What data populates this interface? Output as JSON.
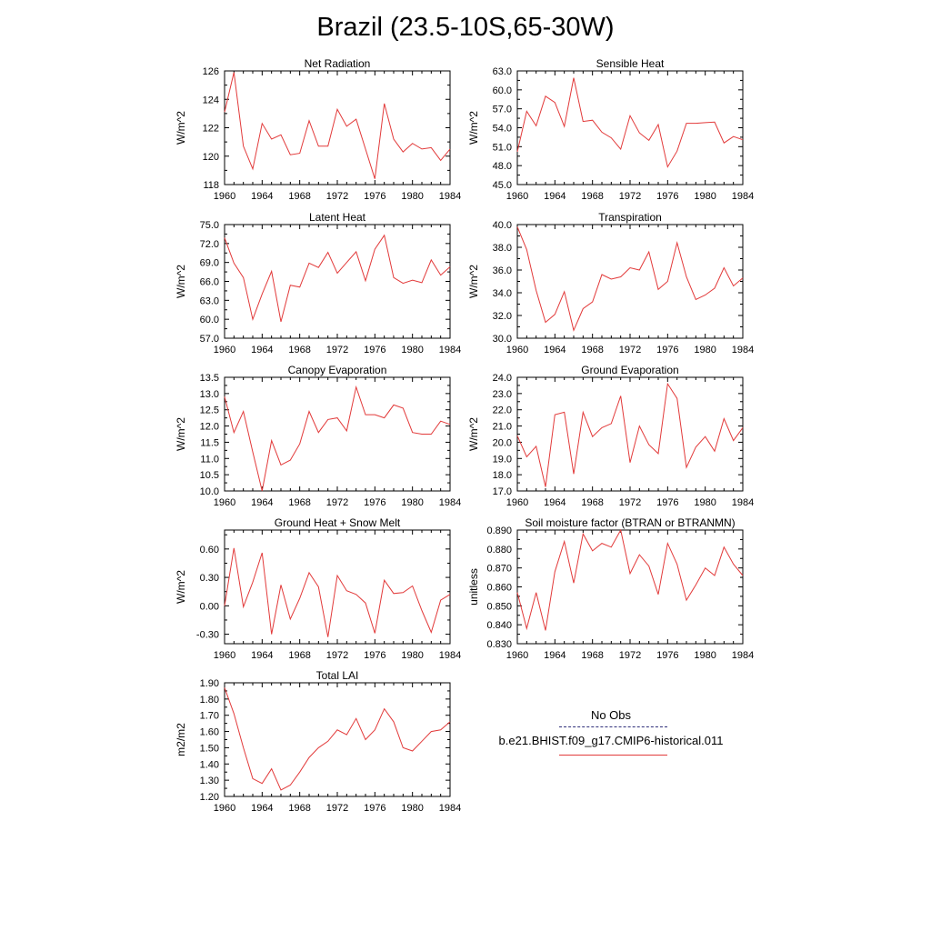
{
  "title": "Brazil (23.5-10S,65-30W)",
  "legend": {
    "obs_label": "No Obs",
    "case_label": "b.e21.BHIST.f09_g17.CMIP6-historical.011",
    "obs_color": "#30307a",
    "case_color": "#e23a3a"
  },
  "chart_data": [
    {
      "type": "line",
      "title": "Net Radiation",
      "ylabel": "W/m^2",
      "xlim": [
        1960,
        1984
      ],
      "ylim": [
        118,
        126
      ],
      "xticks": [
        1960,
        1964,
        1968,
        1972,
        1976,
        1980,
        1984
      ],
      "xtick_labels": [
        "1960",
        "1964",
        "1968",
        "1972",
        "1976",
        "1980",
        "1984"
      ],
      "yticks": [
        118,
        120,
        122,
        124,
        126
      ],
      "ytick_labels": [
        "118",
        "120",
        "122",
        "124",
        "126"
      ],
      "x": [
        1960,
        1961,
        1962,
        1963,
        1964,
        1965,
        1966,
        1967,
        1968,
        1969,
        1970,
        1971,
        1972,
        1973,
        1974,
        1975,
        1976,
        1977,
        1978,
        1979,
        1980,
        1981,
        1982,
        1983,
        1984
      ],
      "series": [
        {
          "values": [
            123.1,
            125.9,
            120.7,
            119.1,
            122.3,
            121.2,
            121.5,
            120.1,
            120.2,
            122.5,
            120.7,
            120.7,
            123.3,
            122.1,
            122.6,
            120.5,
            118.4,
            123.7,
            121.2,
            120.3,
            120.9,
            120.5,
            120.6,
            119.7,
            120.5
          ]
        }
      ]
    },
    {
      "type": "line",
      "title": "Sensible Heat",
      "ylabel": "W/m^2",
      "xlim": [
        1960,
        1984
      ],
      "ylim": [
        45,
        63
      ],
      "xticks": [
        1960,
        1964,
        1968,
        1972,
        1976,
        1980,
        1984
      ],
      "xtick_labels": [
        "1960",
        "1964",
        "1968",
        "1972",
        "1976",
        "1980",
        "1984"
      ],
      "yticks": [
        45,
        48,
        51,
        54,
        57,
        60,
        63
      ],
      "ytick_labels": [
        "45.0",
        "48.0",
        "51.0",
        "54.0",
        "57.0",
        "60.0",
        "63.0"
      ],
      "x": [
        1960,
        1961,
        1962,
        1963,
        1964,
        1965,
        1966,
        1967,
        1968,
        1969,
        1970,
        1971,
        1972,
        1973,
        1974,
        1975,
        1976,
        1977,
        1978,
        1979,
        1980,
        1981,
        1982,
        1983,
        1984
      ],
      "series": [
        {
          "values": [
            50.2,
            56.6,
            54.3,
            59.0,
            58.0,
            54.2,
            61.9,
            55.0,
            55.2,
            53.3,
            52.4,
            50.6,
            55.9,
            53.2,
            52.0,
            54.5,
            47.8,
            50.3,
            54.7,
            54.7,
            54.8,
            54.9,
            51.6,
            52.6,
            52.1
          ]
        }
      ]
    },
    {
      "type": "line",
      "title": "Latent Heat",
      "ylabel": "W/m^2",
      "xlim": [
        1960,
        1984
      ],
      "ylim": [
        57,
        75
      ],
      "xticks": [
        1960,
        1964,
        1968,
        1972,
        1976,
        1980,
        1984
      ],
      "xtick_labels": [
        "1960",
        "1964",
        "1968",
        "1972",
        "1976",
        "1980",
        "1984"
      ],
      "yticks": [
        57,
        60,
        63,
        66,
        69,
        72,
        75
      ],
      "ytick_labels": [
        "57.0",
        "60.0",
        "63.0",
        "66.0",
        "69.0",
        "72.0",
        "75.0"
      ],
      "x": [
        1960,
        1961,
        1962,
        1963,
        1964,
        1965,
        1966,
        1967,
        1968,
        1969,
        1970,
        1971,
        1972,
        1973,
        1974,
        1975,
        1976,
        1977,
        1978,
        1979,
        1980,
        1981,
        1982,
        1983,
        1984
      ],
      "series": [
        {
          "values": [
            72.9,
            68.9,
            66.6,
            60.0,
            64.0,
            67.6,
            59.6,
            65.4,
            65.1,
            68.9,
            68.2,
            70.6,
            67.3,
            69.0,
            70.7,
            66.1,
            71.1,
            73.3,
            66.6,
            65.7,
            66.2,
            65.8,
            69.4,
            67.0,
            68.3
          ]
        }
      ]
    },
    {
      "type": "line",
      "title": "Transpiration",
      "ylabel": "W/m^2",
      "xlim": [
        1960,
        1984
      ],
      "ylim": [
        30,
        40
      ],
      "xticks": [
        1960,
        1964,
        1968,
        1972,
        1976,
        1980,
        1984
      ],
      "xtick_labels": [
        "1960",
        "1964",
        "1968",
        "1972",
        "1976",
        "1980",
        "1984"
      ],
      "yticks": [
        30,
        32,
        34,
        36,
        38,
        40
      ],
      "ytick_labels": [
        "30.0",
        "32.0",
        "34.0",
        "36.0",
        "38.0",
        "40.0"
      ],
      "x": [
        1960,
        1961,
        1962,
        1963,
        1964,
        1965,
        1966,
        1967,
        1968,
        1969,
        1970,
        1971,
        1972,
        1973,
        1974,
        1975,
        1976,
        1977,
        1978,
        1979,
        1980,
        1981,
        1982,
        1983,
        1984
      ],
      "series": [
        {
          "values": [
            39.8,
            37.8,
            34.2,
            31.4,
            32.1,
            34.1,
            30.7,
            32.6,
            33.2,
            35.6,
            35.2,
            35.4,
            36.2,
            36.0,
            37.6,
            34.3,
            35.0,
            38.4,
            35.4,
            33.4,
            33.8,
            34.4,
            36.2,
            34.6,
            35.3
          ]
        }
      ]
    },
    {
      "type": "line",
      "title": "Canopy Evaporation",
      "ylabel": "W/m^2",
      "xlim": [
        1960,
        1984
      ],
      "ylim": [
        10,
        13.5
      ],
      "xticks": [
        1960,
        1964,
        1968,
        1972,
        1976,
        1980,
        1984
      ],
      "xtick_labels": [
        "1960",
        "1964",
        "1968",
        "1972",
        "1976",
        "1980",
        "1984"
      ],
      "yticks": [
        10,
        10.5,
        11,
        11.5,
        12,
        12.5,
        13,
        13.5
      ],
      "ytick_labels": [
        "10.0",
        "10.5",
        "11.0",
        "11.5",
        "12.0",
        "12.5",
        "13.0",
        "13.5"
      ],
      "x": [
        1960,
        1961,
        1962,
        1963,
        1964,
        1965,
        1966,
        1967,
        1968,
        1969,
        1970,
        1971,
        1972,
        1973,
        1974,
        1975,
        1976,
        1977,
        1978,
        1979,
        1980,
        1981,
        1982,
        1983,
        1984
      ],
      "series": [
        {
          "values": [
            12.9,
            11.8,
            12.45,
            11.2,
            10.0,
            11.55,
            10.8,
            10.95,
            11.45,
            12.45,
            11.8,
            12.2,
            12.25,
            11.85,
            13.2,
            12.35,
            12.35,
            12.25,
            12.65,
            12.55,
            11.8,
            11.75,
            11.75,
            12.15,
            12.05
          ]
        }
      ]
    },
    {
      "type": "line",
      "title": "Ground Evaporation",
      "ylabel": "W/m^2",
      "xlim": [
        1960,
        1984
      ],
      "ylim": [
        17,
        24
      ],
      "xticks": [
        1960,
        1964,
        1968,
        1972,
        1976,
        1980,
        1984
      ],
      "xtick_labels": [
        "1960",
        "1964",
        "1968",
        "1972",
        "1976",
        "1980",
        "1984"
      ],
      "yticks": [
        17,
        18,
        19,
        20,
        21,
        22,
        23,
        24
      ],
      "ytick_labels": [
        "17.0",
        "18.0",
        "19.0",
        "20.0",
        "21.0",
        "22.0",
        "23.0",
        "24.0"
      ],
      "x": [
        1960,
        1961,
        1962,
        1963,
        1964,
        1965,
        1966,
        1967,
        1968,
        1969,
        1970,
        1971,
        1972,
        1973,
        1974,
        1975,
        1976,
        1977,
        1978,
        1979,
        1980,
        1981,
        1982,
        1983,
        1984
      ],
      "series": [
        {
          "values": [
            20.4,
            19.1,
            19.75,
            17.25,
            21.7,
            21.85,
            18.05,
            21.85,
            20.35,
            20.9,
            21.15,
            22.85,
            18.75,
            21.0,
            19.85,
            19.3,
            23.6,
            22.7,
            18.45,
            19.7,
            20.35,
            19.45,
            21.45,
            20.1,
            20.9
          ]
        }
      ]
    },
    {
      "type": "line",
      "title": "Ground Heat + Snow Melt",
      "ylabel": "W/m^2",
      "xlim": [
        1960,
        1984
      ],
      "ylim": [
        -0.4,
        0.8
      ],
      "xticks": [
        1960,
        1964,
        1968,
        1972,
        1976,
        1980,
        1984
      ],
      "xtick_labels": [
        "1960",
        "1964",
        "1968",
        "1972",
        "1976",
        "1980",
        "1984"
      ],
      "yticks": [
        -0.3,
        0,
        0.3,
        0.6
      ],
      "ytick_labels": [
        "-0.30",
        "0.00",
        "0.30",
        "0.60"
      ],
      "x": [
        1960,
        1961,
        1962,
        1963,
        1964,
        1965,
        1966,
        1967,
        1968,
        1969,
        1970,
        1971,
        1972,
        1973,
        1974,
        1975,
        1976,
        1977,
        1978,
        1979,
        1980,
        1981,
        1982,
        1983,
        1984
      ],
      "series": [
        {
          "values": [
            0.0,
            0.61,
            -0.01,
            0.25,
            0.56,
            -0.3,
            0.22,
            -0.14,
            0.08,
            0.35,
            0.2,
            -0.33,
            0.32,
            0.16,
            0.12,
            0.03,
            -0.29,
            0.27,
            0.13,
            0.14,
            0.21,
            -0.05,
            -0.28,
            0.06,
            0.12
          ]
        }
      ]
    },
    {
      "type": "line",
      "title": "Soil moisture factor (BTRAN or BTRANMN)",
      "ylabel": "unitless",
      "xlim": [
        1960,
        1984
      ],
      "ylim": [
        0.83,
        0.89
      ],
      "xticks": [
        1960,
        1964,
        1968,
        1972,
        1976,
        1980,
        1984
      ],
      "xtick_labels": [
        "1960",
        "1964",
        "1968",
        "1972",
        "1976",
        "1980",
        "1984"
      ],
      "yticks": [
        0.83,
        0.84,
        0.85,
        0.86,
        0.87,
        0.88,
        0.89
      ],
      "ytick_labels": [
        "0.830",
        "0.840",
        "0.850",
        "0.860",
        "0.870",
        "0.880",
        "0.890"
      ],
      "x": [
        1960,
        1961,
        1962,
        1963,
        1964,
        1965,
        1966,
        1967,
        1968,
        1969,
        1970,
        1971,
        1972,
        1973,
        1974,
        1975,
        1976,
        1977,
        1978,
        1979,
        1980,
        1981,
        1982,
        1983,
        1984
      ],
      "series": [
        {
          "values": [
            0.857,
            0.838,
            0.857,
            0.837,
            0.868,
            0.884,
            0.862,
            0.888,
            0.879,
            0.883,
            0.881,
            0.89,
            0.867,
            0.877,
            0.871,
            0.856,
            0.883,
            0.872,
            0.853,
            0.861,
            0.87,
            0.866,
            0.881,
            0.872,
            0.866
          ]
        }
      ]
    },
    {
      "type": "line",
      "title": "Total LAI",
      "ylabel": "m2/m2",
      "xlim": [
        1960,
        1984
      ],
      "ylim": [
        1.2,
        1.9
      ],
      "xticks": [
        1960,
        1964,
        1968,
        1972,
        1976,
        1980,
        1984
      ],
      "xtick_labels": [
        "1960",
        "1964",
        "1968",
        "1972",
        "1976",
        "1980",
        "1984"
      ],
      "yticks": [
        1.2,
        1.3,
        1.4,
        1.5,
        1.6,
        1.7,
        1.8,
        1.9
      ],
      "ytick_labels": [
        "1.20",
        "1.30",
        "1.40",
        "1.50",
        "1.60",
        "1.70",
        "1.80",
        "1.90"
      ],
      "x": [
        1960,
        1961,
        1962,
        1963,
        1964,
        1965,
        1966,
        1967,
        1968,
        1969,
        1970,
        1971,
        1972,
        1973,
        1974,
        1975,
        1976,
        1977,
        1978,
        1979,
        1980,
        1981,
        1982,
        1983,
        1984
      ],
      "series": [
        {
          "values": [
            1.87,
            1.71,
            1.5,
            1.31,
            1.28,
            1.37,
            1.24,
            1.27,
            1.35,
            1.44,
            1.5,
            1.54,
            1.61,
            1.58,
            1.68,
            1.55,
            1.61,
            1.74,
            1.66,
            1.5,
            1.48,
            1.54,
            1.6,
            1.61,
            1.66
          ]
        }
      ]
    }
  ]
}
